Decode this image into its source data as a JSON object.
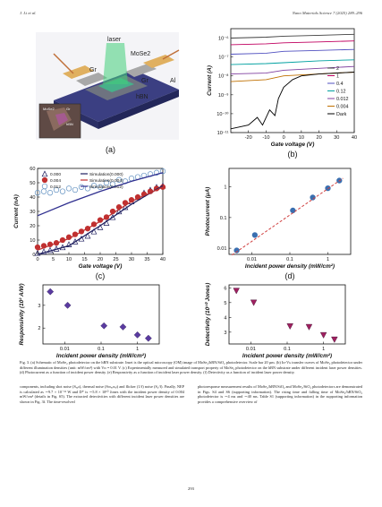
{
  "header": {
    "left": "J. Li et al.",
    "right": "Nano Materials Science 7 (2025) 289–296"
  },
  "panel_a": {
    "labels": {
      "laser": "laser",
      "mose2": "MoSe2",
      "gr1": "Gr",
      "gr2": "Gr",
      "hbn": "hBN",
      "al": "Al"
    },
    "inset_labels": {
      "mose2": "MoSe2",
      "gr": "Gr",
      "hbn": "hBN"
    },
    "letter": "(a)"
  },
  "chart_data": [
    {
      "panel": "(b)",
      "type": "line",
      "xlabel": "Gate voltage (V)",
      "ylabel": "Current (A)",
      "xlim": [
        -30,
        40
      ],
      "ylim_log10": [
        -11,
        -5.5
      ],
      "xticks": [
        -20,
        -10,
        0,
        10,
        20,
        30,
        40
      ],
      "yticks": [
        "10⁻⁶",
        "10⁻⁷",
        "10⁻⁸",
        "10⁻⁹",
        "10⁻¹⁰",
        "10⁻¹¹"
      ],
      "ytick_values_log10": [
        -6,
        -7,
        -8,
        -9,
        -10,
        -11
      ],
      "log_y": true,
      "series": [
        {
          "name": "2",
          "color": "#404040",
          "points": [
            [
              -30,
              -6.0
            ],
            [
              -10,
              -5.95
            ],
            [
              0,
              -5.9
            ],
            [
              20,
              -5.85
            ],
            [
              40,
              -5.8
            ]
          ]
        },
        {
          "name": "1",
          "color": "#c00060",
          "points": [
            [
              -30,
              -6.35
            ],
            [
              -10,
              -6.3
            ],
            [
              0,
              -6.25
            ],
            [
              20,
              -6.2
            ],
            [
              40,
              -6.15
            ]
          ]
        },
        {
          "name": "0.4",
          "color": "#5050c0",
          "points": [
            [
              -30,
              -6.85
            ],
            [
              -10,
              -6.8
            ],
            [
              0,
              -6.7
            ],
            [
              20,
              -6.65
            ],
            [
              40,
              -6.6
            ]
          ]
        },
        {
          "name": "0.12",
          "color": "#00a0a0",
          "points": [
            [
              -30,
              -7.4
            ],
            [
              -10,
              -7.35
            ],
            [
              0,
              -7.3
            ],
            [
              20,
              -7.2
            ],
            [
              40,
              -7.15
            ]
          ]
        },
        {
          "name": "0.012",
          "color": "#8040a0",
          "points": [
            [
              -30,
              -7.9
            ],
            [
              -10,
              -7.85
            ],
            [
              0,
              -7.7
            ],
            [
              20,
              -7.6
            ],
            [
              40,
              -7.5
            ]
          ]
        },
        {
          "name": "0.004",
          "color": "#c07000",
          "points": [
            [
              -30,
              -8.3
            ],
            [
              -10,
              -8.2
            ],
            [
              0,
              -8.0
            ],
            [
              20,
              -7.9
            ],
            [
              40,
              -7.8
            ]
          ]
        },
        {
          "name": "Dark",
          "color": "#000000",
          "points": [
            [
              -30,
              -10.8
            ],
            [
              -20,
              -10.6
            ],
            [
              -15,
              -10.2
            ],
            [
              -12,
              -10.6
            ],
            [
              -8,
              -9.8
            ],
            [
              -5,
              -10.1
            ],
            [
              -3,
              -9.2
            ],
            [
              0,
              -8.6
            ],
            [
              5,
              -8.2
            ],
            [
              10,
              -8.0
            ],
            [
              20,
              -7.9
            ],
            [
              40,
              -7.8
            ]
          ]
        }
      ],
      "legend": "right",
      "letter": "(b)"
    },
    {
      "panel": "(c)",
      "type": "scatter",
      "xlabel": "Gate voltage (V)",
      "ylabel": "Current (nA)",
      "xlim": [
        0,
        40
      ],
      "ylim": [
        0,
        60
      ],
      "xticks": [
        0,
        5,
        10,
        15,
        20,
        25,
        30,
        35,
        40
      ],
      "yticks": [
        0,
        10,
        20,
        30,
        40,
        50,
        60
      ],
      "series": [
        {
          "name": "0.000",
          "color": "#202060",
          "marker": "triangle",
          "x": [
            0,
            2,
            4,
            6,
            8,
            10,
            12,
            14,
            16,
            18,
            20,
            22,
            24,
            26,
            28,
            30,
            32,
            34,
            36,
            38,
            40
          ],
          "y": [
            1,
            2,
            3,
            4,
            5,
            7,
            9,
            11,
            13,
            16,
            19,
            22,
            26,
            30,
            33,
            37,
            40,
            43,
            45,
            47,
            48
          ]
        },
        {
          "name": "0.004",
          "color": "#c03030",
          "marker": "circle",
          "x": [
            0,
            2,
            4,
            6,
            8,
            10,
            12,
            14,
            16,
            18,
            20,
            22,
            24,
            26,
            28,
            30,
            32,
            34,
            36,
            38,
            40
          ],
          "y": [
            5,
            6,
            7,
            8,
            10,
            12,
            14,
            16,
            18,
            21,
            24,
            26,
            30,
            33,
            36,
            38,
            40,
            42,
            44,
            46,
            47
          ]
        },
        {
          "name": "0.012",
          "color": "#6090c0",
          "marker": "circle",
          "x": [
            0,
            2,
            4,
            6,
            8,
            10,
            12,
            14,
            16,
            18,
            20,
            22,
            24,
            26,
            28,
            30,
            32,
            34,
            36,
            38,
            40
          ],
          "y": [
            43,
            44,
            43,
            45,
            44,
            46,
            45,
            47,
            46,
            48,
            47,
            50,
            49,
            52,
            51,
            53,
            54,
            55,
            56,
            57,
            58
          ]
        },
        {
          "name": "Simulation(0.000)",
          "color": "#202060",
          "marker": "line",
          "x": [
            0,
            10,
            20,
            30,
            40
          ],
          "y": [
            0,
            6,
            20,
            35,
            48
          ]
        },
        {
          "name": "Simulation(0.004)",
          "color": "#c03030",
          "marker": "line",
          "x": [
            0,
            10,
            20,
            30,
            40
          ],
          "y": [
            3,
            11,
            23,
            37,
            47
          ]
        },
        {
          "name": "Simulation(0.012)",
          "color": "#303090",
          "marker": "line",
          "x": [
            0,
            10,
            20,
            30,
            40
          ],
          "y": [
            27,
            36,
            44,
            51,
            57
          ]
        }
      ],
      "legend": "top-left",
      "letter": "(c)"
    },
    {
      "panel": "(d)",
      "type": "scatter",
      "xlabel": "Incident power density (mW/cm²)",
      "ylabel": "Photocurrent (μA)",
      "log_x": true,
      "log_y": true,
      "xlim_log10": [
        -2.6,
        0.6
      ],
      "ylim_log10": [
        -2.2,
        0.6
      ],
      "xticks": [
        "0.01",
        "0.1",
        "1"
      ],
      "xtick_values_log10": [
        -2,
        -1,
        0
      ],
      "yticks": [
        "1",
        "0.1",
        "0.01"
      ],
      "ytick_values_log10": [
        0,
        -1,
        -2
      ],
      "series": [
        {
          "name": "Data",
          "color": "#3a6fb0",
          "marker": "circle",
          "x": [
            0.004,
            0.012,
            0.12,
            0.4,
            1,
            2
          ],
          "y": [
            0.0085,
            0.027,
            0.17,
            0.45,
            0.9,
            1.6
          ]
        },
        {
          "name": "Fit",
          "color": "#d04040",
          "marker": "dashed-line",
          "x": [
            0.003,
            2.5
          ],
          "y": [
            0.006,
            1.9
          ]
        }
      ],
      "letter": "(d)"
    },
    {
      "panel": "(e)",
      "type": "scatter",
      "xlabel": "Incident power density (mW/cm²)",
      "ylabel": "Responsivity (10² A/W)",
      "log_x": true,
      "xlim_log10": [
        -2.6,
        0.6
      ],
      "ylim": [
        1.3,
        3.9
      ],
      "xticks": [
        "0.01",
        "0.1",
        "1"
      ],
      "xtick_values_log10": [
        -2,
        -1,
        0
      ],
      "yticks": [
        2,
        3
      ],
      "series": [
        {
          "name": "Responsivity",
          "color": "#5a3aa0",
          "marker": "diamond",
          "x": [
            0.004,
            0.012,
            0.12,
            0.4,
            1,
            2
          ],
          "y": [
            3.6,
            3.0,
            2.1,
            2.05,
            1.7,
            1.55
          ]
        }
      ],
      "letter": "(e)"
    },
    {
      "panel": "(f)",
      "type": "scatter",
      "xlabel": "Incident power density (mW/cm²)",
      "ylabel": "Detectivity (10¹⁰ Jones)",
      "log_x": true,
      "xlim_log10": [
        -2.6,
        0.6
      ],
      "ylim": [
        2.2,
        6.2
      ],
      "xticks": [
        "0.01",
        "0.1",
        "1"
      ],
      "xtick_values_log10": [
        -2,
        -1,
        0
      ],
      "yticks": [
        3,
        4,
        5,
        6
      ],
      "series": [
        {
          "name": "Detectivity",
          "color": "#a02060",
          "marker": "triangle-down",
          "x": [
            0.004,
            0.012,
            0.12,
            0.4,
            1,
            2
          ],
          "y": [
            5.8,
            5.0,
            3.4,
            3.35,
            2.8,
            2.5
          ]
        }
      ],
      "letter": "(f)"
    }
  ],
  "caption": "Fig. 3. (a) Schematic of MoSe₂ photodetector on the hBN substrate. Inset is the optical microscopy (OM) image of MoSe₂/hBN/SiO₂ photodetector. Scale bar 20 µm. (b) Iᴅ-Vɢ transfer curves of MoSe₂ photodetector under different illumination densities (unit: mW/cm²) with Vᴅ = 0.01 V. (c) Experimentally measured and simulated transport property of MoSe₂ photodetector on the hBN substrate under different incident laser power densities. (d) Photocurrent as a function of incident power density. (e) Responsivity as a function of incident laser power density. (f) Detectivity as a function of incident laser power density.",
  "body_left": "components, including shot noise (Sₔₐₙ), thermal noise (Sₜₕₑᵣₘₐₗ) and flicker (1/f) noise (S₁/f). Finally, NEP is calculated as ∼9.7 × 10⁻¹³ W and D* is ∼5.8 × 10¹⁰ Jones with the incident power density of 0.004 mW/cm² (details in Fig. S5). The extracted detectivities with different incident laser power densities are shown in Fig. 3f. The time-resolved",
  "body_right": "photoresponse measurement results of MoSe₂/hBN/SiO₂ and MoSe₂/SiO₂ photodetectors are demonstrated in Figs. S4 and S6 (supporting information). The rising time and falling time of MoSe₂/hBN/SiO₂ photodetector is ∼4 ms and ∼40 ms. Table S1 (supporting information) in the supporting information provides a comprehensive overview of",
  "page_number": "293"
}
